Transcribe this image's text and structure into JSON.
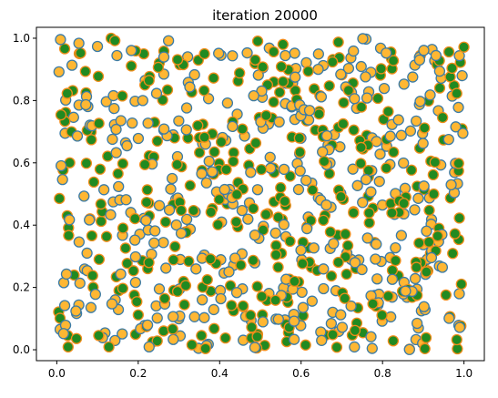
{
  "chart_data": {
    "type": "scatter",
    "title": "iteration 20000",
    "xlabel": "",
    "ylabel": "",
    "xlim": [
      -0.05,
      1.05
    ],
    "ylim": [
      -0.035,
      1.035
    ],
    "xticks": [
      0.0,
      0.2,
      0.4,
      0.6,
      0.8,
      1.0
    ],
    "yticks": [
      0.0,
      0.2,
      0.4,
      0.6,
      0.8,
      1.0
    ],
    "xtick_labels": [
      "0.0",
      "0.2",
      "0.4",
      "0.6",
      "0.8",
      "1.0"
    ],
    "ytick_labels": [
      "0.0",
      "0.2",
      "0.4",
      "0.6",
      "0.8",
      "1.0"
    ],
    "grid": false,
    "legend": "none",
    "n_points": 800,
    "x_range": [
      0.0,
      1.0
    ],
    "y_range": [
      0.0,
      1.0
    ],
    "distribution": "uniform random in unit square",
    "series": [
      {
        "marker": "orange-fill-blue-edge",
        "fill": "#FFB733",
        "edge": "#3B7BA6",
        "share": 0.5
      },
      {
        "marker": "green-fill-orange-edge",
        "fill": "#218A21",
        "edge": "#F08C1A",
        "share": 0.5
      }
    ]
  }
}
